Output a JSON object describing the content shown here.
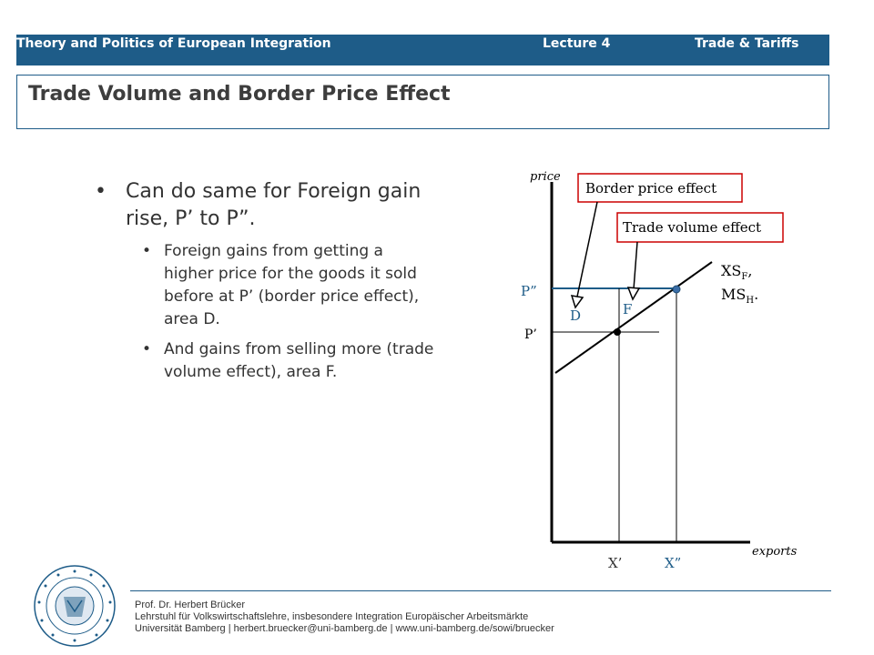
{
  "header": {
    "course": "Theory and Politics of European Integration",
    "lecture": "Lecture 4",
    "topic": "Trade & Tariffs",
    "color": "#1e5c88"
  },
  "title": "Trade Volume and Border Price Effect",
  "bullets": {
    "main": "Can do same for Foreign gain rise, P’ to P”.",
    "subs": [
      "Foreign gains from getting a higher price for the goods it sold before at P’ (border price effect), area D.",
      "And gains from selling more (trade volume effect), area F."
    ]
  },
  "diagram": {
    "y_axis_label": "price",
    "x_axis_label": "exports",
    "callout_border": "Border price effect",
    "callout_volume": "Trade volume effect",
    "curve_label_1": "XS",
    "curve_label_1_sub": "F",
    "curve_label_2": "MS",
    "curve_label_2_sub": "H",
    "price_high": "P”",
    "price_low": "P’",
    "area_d": "D",
    "area_f": "F",
    "qty_low": "X’",
    "qty_high": "X”",
    "callout_color": "#cc0000",
    "accent_color": "#1e5c88"
  },
  "footer": {
    "name": "Prof. Dr. Herbert Brücker",
    "chair": "Lehrstuhl für Volkswirtschaftslehre, insbesondere Integration Europäischer Arbeitsmärkte",
    "contact": "Universität Bamberg | herbert.bruecker@uni-bamberg.de | www.uni-bamberg.de/sowi/bruecker"
  },
  "seal": {
    "text": "UNIVERSITY OF BAMBERG · OTTO-FRIEDRICH-UNIVERSITÄT BAMBERG"
  }
}
